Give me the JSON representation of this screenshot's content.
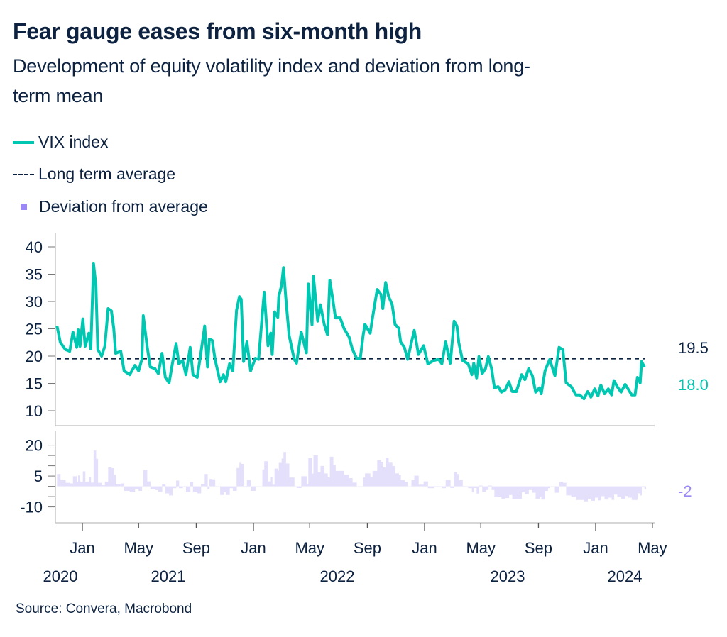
{
  "header": {
    "title": "Fear gauge eases from six-month high",
    "subtitle_lines": [
      "Development of equity volatility index and deviation from long-",
      "term mean"
    ]
  },
  "legend": {
    "items": [
      {
        "label": "VIX index",
        "icon": "solid-line",
        "color": "#00c7b1"
      },
      {
        "label": "Long term average",
        "icon": "dashed-line",
        "color": "#0d2240"
      },
      {
        "label": "Deviation from average",
        "icon": "square",
        "color": "#9b87f5"
      }
    ]
  },
  "source": "Source: Convera, Macrobond",
  "chart_data": [
    {
      "type": "line",
      "panel": "upper",
      "ylim": [
        7,
        43
      ],
      "yticks": [
        "40",
        "35",
        "30",
        "25",
        "20",
        "15",
        "10"
      ],
      "ytick_values": [
        40,
        35,
        30,
        25,
        20,
        15,
        10
      ],
      "grid": false,
      "xlim": [
        "2020-11-01",
        "2024-05-20"
      ],
      "x_month_ticks": [
        "Jan",
        "May",
        "Sep",
        "Jan",
        "May",
        "Sep",
        "Jan",
        "May",
        "Sep",
        "Jan",
        "May"
      ],
      "x_month_tick_dates": [
        "2021-01-01",
        "2021-05-01",
        "2021-09-01",
        "2022-01-01",
        "2022-05-01",
        "2022-09-01",
        "2023-01-01",
        "2023-05-01",
        "2023-09-01",
        "2024-01-01",
        "2024-05-01"
      ],
      "x_year_labels": [
        "2020",
        "2021",
        "2022",
        "2023",
        "2024"
      ],
      "reference_line": {
        "name": "Long term average",
        "value": 19.5,
        "label": "19.5",
        "color": "#0d2240"
      },
      "last_value_label": "18.0",
      "series": [
        {
          "name": "VIX index",
          "color": "#00c7b1",
          "x": [
            "2020-11-08",
            "2020-11-15",
            "2020-11-26",
            "2020-12-05",
            "2020-12-12",
            "2020-12-20",
            "2020-12-23",
            "2020-12-27",
            "2021-01-02",
            "2021-01-07",
            "2021-01-15",
            "2021-01-19",
            "2021-01-25",
            "2021-01-30",
            "2021-02-03",
            "2021-02-11",
            "2021-02-18",
            "2021-02-25",
            "2021-03-04",
            "2021-03-09",
            "2021-03-13",
            "2021-03-24",
            "2021-03-31",
            "2021-04-12",
            "2021-04-23",
            "2021-05-01",
            "2021-05-08",
            "2021-05-11",
            "2021-05-19",
            "2021-05-26",
            "2021-06-05",
            "2021-06-12",
            "2021-06-20",
            "2021-06-27",
            "2021-07-05",
            "2021-07-12",
            "2021-07-20",
            "2021-07-26",
            "2021-08-03",
            "2021-08-10",
            "2021-08-19",
            "2021-08-25",
            "2021-09-03",
            "2021-09-11",
            "2021-09-19",
            "2021-09-25",
            "2021-09-29",
            "2021-10-05",
            "2021-10-11",
            "2021-10-22",
            "2021-10-29",
            "2021-11-03",
            "2021-11-11",
            "2021-11-18",
            "2021-11-26",
            "2021-12-02",
            "2021-12-06",
            "2021-12-11",
            "2021-12-18",
            "2021-12-26",
            "2022-01-05",
            "2022-01-12",
            "2022-01-20",
            "2022-01-24",
            "2022-02-01",
            "2022-02-07",
            "2022-02-10",
            "2022-02-15",
            "2022-02-22",
            "2022-02-24",
            "2022-03-02",
            "2022-03-06",
            "2022-03-11",
            "2022-03-18",
            "2022-03-29",
            "2022-04-03",
            "2022-04-13",
            "2022-04-24",
            "2022-04-28",
            "2022-05-06",
            "2022-05-09",
            "2022-05-18",
            "2022-05-24",
            "2022-06-01",
            "2022-06-08",
            "2022-06-13",
            "2022-06-20",
            "2022-06-25",
            "2022-07-05",
            "2022-07-13",
            "2022-07-24",
            "2022-07-31",
            "2022-08-09",
            "2022-08-17",
            "2022-08-23",
            "2022-08-27",
            "2022-09-07",
            "2022-09-12",
            "2022-09-22",
            "2022-09-30",
            "2022-10-04",
            "2022-10-10",
            "2022-10-16",
            "2022-10-24",
            "2022-10-30",
            "2022-11-07",
            "2022-11-11",
            "2022-11-19",
            "2022-11-26",
            "2022-12-04",
            "2022-12-10",
            "2022-12-19",
            "2022-12-30",
            "2023-01-08",
            "2023-01-21",
            "2023-01-31",
            "2023-02-07",
            "2023-02-15",
            "2023-02-25",
            "2023-03-05",
            "2023-03-11",
            "2023-03-15",
            "2023-03-23",
            "2023-04-04",
            "2023-04-12",
            "2023-04-16",
            "2023-04-22",
            "2023-04-27",
            "2023-05-04",
            "2023-05-11",
            "2023-05-17",
            "2023-05-24",
            "2023-05-30",
            "2023-06-07",
            "2023-06-14",
            "2023-06-22",
            "2023-06-30",
            "2023-07-07",
            "2023-07-16",
            "2023-07-27",
            "2023-08-03",
            "2023-08-11",
            "2023-08-19",
            "2023-08-26",
            "2023-09-03",
            "2023-09-07",
            "2023-09-15",
            "2023-09-21",
            "2023-09-25",
            "2023-10-06",
            "2023-10-15",
            "2023-10-23",
            "2023-10-30",
            "2023-11-10",
            "2023-11-20",
            "2023-11-28",
            "2023-12-07",
            "2023-12-15",
            "2023-12-22",
            "2023-12-30",
            "2024-01-06",
            "2024-01-12",
            "2024-01-20",
            "2024-01-28",
            "2024-02-04",
            "2024-02-09",
            "2024-02-16",
            "2024-02-24",
            "2024-03-04",
            "2024-03-10",
            "2024-03-18",
            "2024-03-25",
            "2024-03-30",
            "2024-04-05",
            "2024-04-08",
            "2024-04-14"
          ],
          "values": [
            25.5,
            22.5,
            21.2,
            20.9,
            24.4,
            21.6,
            24.8,
            21.8,
            26.8,
            21.8,
            24.2,
            21.3,
            36.9,
            32.9,
            21.2,
            20.0,
            21.8,
            28.7,
            28.3,
            25.1,
            20.5,
            20.9,
            17.3,
            16.6,
            18.3,
            17.3,
            19.4,
            27.4,
            21.9,
            18.0,
            17.7,
            16.8,
            20.5,
            16.1,
            15.1,
            18.6,
            22.3,
            18.6,
            19.2,
            16.6,
            21.6,
            16.6,
            16.1,
            20.6,
            25.5,
            18.0,
            23.1,
            22.9,
            19.4,
            15.3,
            16.6,
            15.3,
            18.6,
            17.3,
            28.4,
            30.9,
            30.4,
            19.0,
            22.6,
            17.3,
            19.6,
            19.4,
            27.7,
            31.7,
            21.9,
            24.2,
            20.3,
            28.1,
            27.1,
            30.9,
            33.0,
            36.2,
            30.6,
            23.8,
            19.4,
            18.7,
            24.4,
            20.6,
            33.2,
            25.7,
            34.6,
            26.4,
            29.4,
            25.8,
            23.9,
            33.9,
            30.0,
            27.0,
            27.0,
            25.1,
            23.5,
            21.3,
            19.6,
            19.6,
            23.8,
            25.8,
            24.2,
            27.0,
            32.2,
            31.3,
            28.7,
            33.5,
            31.0,
            29.4,
            25.8,
            25.1,
            22.6,
            21.6,
            19.4,
            22.5,
            24.7,
            20.3,
            21.9,
            18.6,
            19.2,
            19.4,
            18.6,
            22.6,
            18.7,
            26.4,
            25.5,
            22.5,
            19.2,
            18.6,
            16.6,
            18.7,
            16.0,
            19.9,
            16.8,
            17.7,
            19.9,
            17.7,
            14.2,
            14.4,
            13.4,
            13.8,
            15.3,
            13.5,
            13.5,
            16.6,
            15.7,
            17.7,
            16.4,
            13.4,
            14.2,
            13.1,
            17.3,
            18.6,
            19.4,
            16.4,
            21.6,
            21.2,
            15.1,
            14.4,
            12.9,
            12.9,
            12.2,
            13.5,
            12.5,
            14.0,
            12.7,
            14.7,
            13.1,
            14.0,
            12.9,
            15.5,
            14.4,
            13.4,
            14.8,
            14.0,
            12.9,
            12.9,
            16.1,
            15.1,
            19.0,
            18.0
          ]
        }
      ]
    },
    {
      "type": "area",
      "panel": "lower",
      "ylim": [
        -13,
        23
      ],
      "yticks": [
        "20",
        "5",
        "-10"
      ],
      "ytick_values": [
        20,
        5,
        -10
      ],
      "minor_tick_values": [
        15,
        10,
        0,
        -5
      ],
      "grid": false,
      "last_value_label": "-2",
      "series": [
        {
          "name": "Deviation from average",
          "color": "#e4e0fb",
          "label_color": "#9b87f5",
          "baseline": 0,
          "derived_from": "VIX index minus 19.5"
        }
      ]
    }
  ]
}
